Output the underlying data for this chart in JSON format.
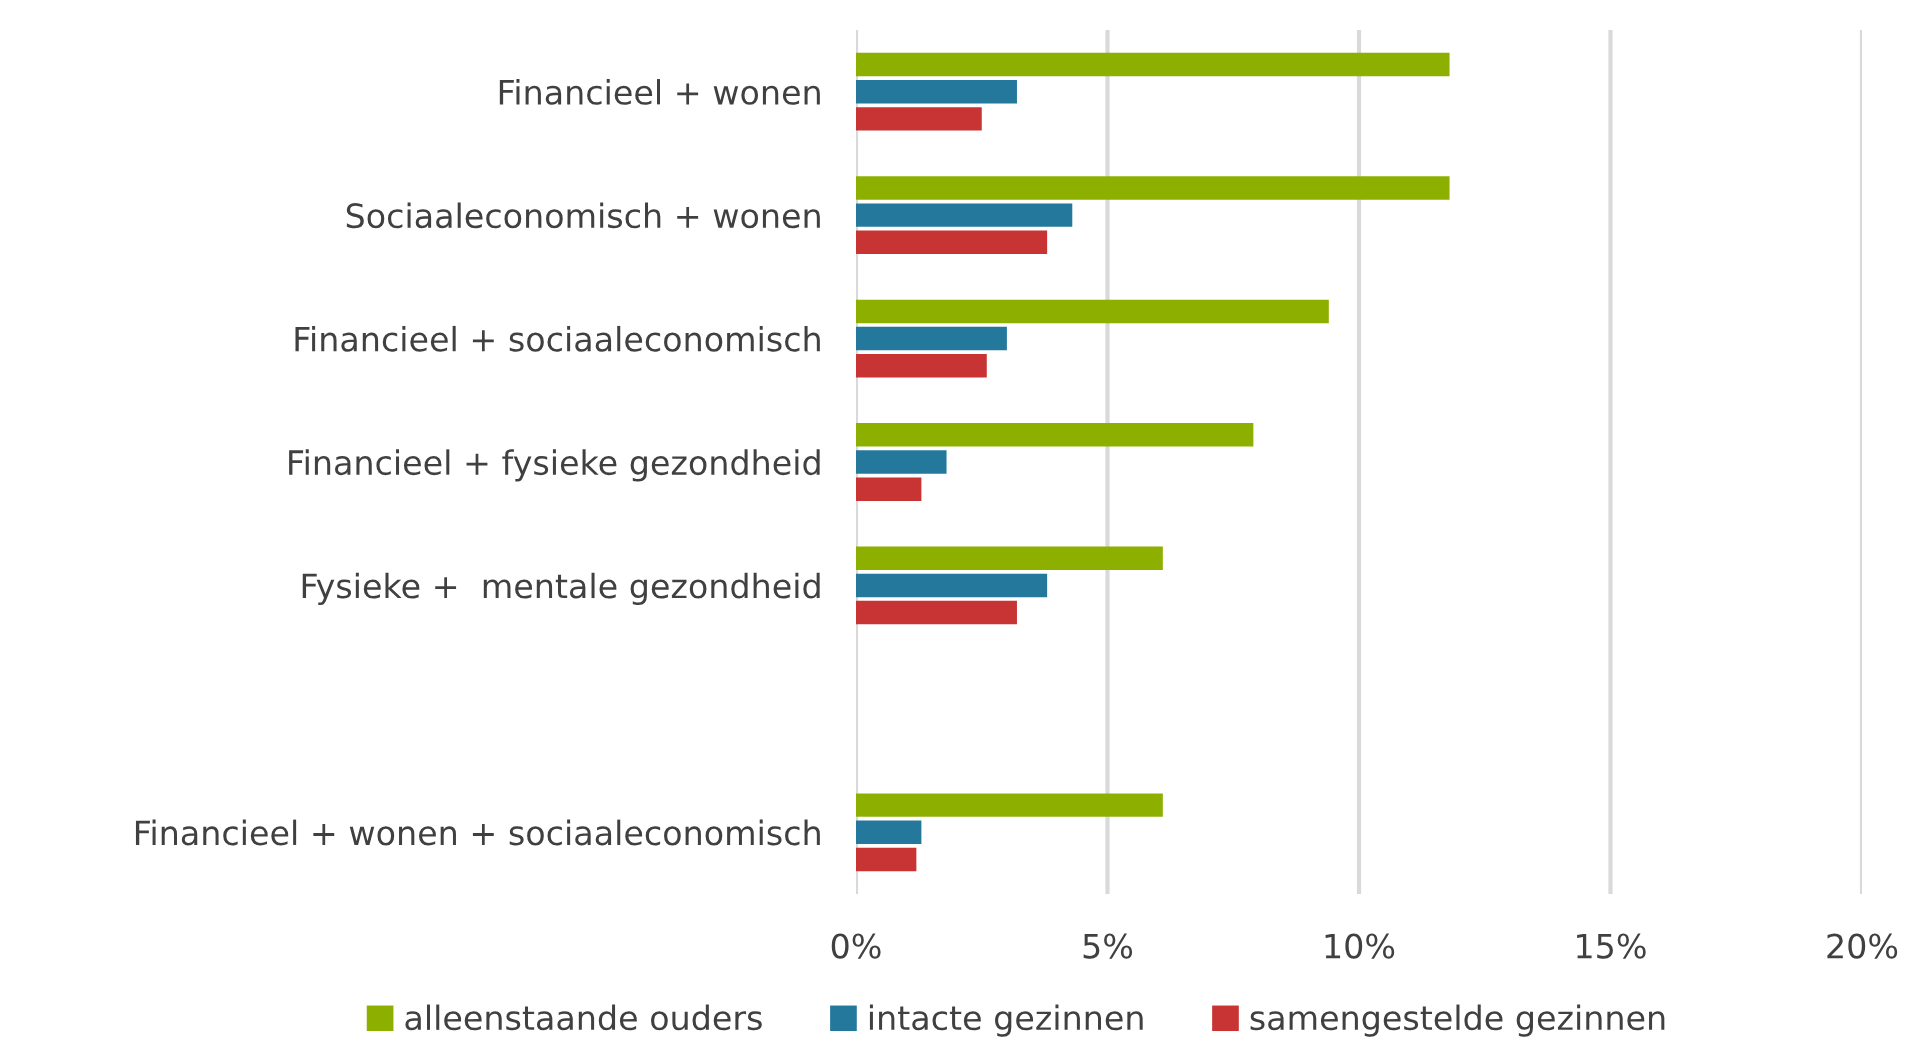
{
  "chart_data": {
    "type": "bar",
    "orientation": "horizontal",
    "categories": [
      "Financieel + wonen",
      "Sociaaleconomisch + wonen",
      "Financieel + sociaaleconomisch",
      "Financieel + fysieke gezondheid",
      "Fysieke +  mentale gezondheid",
      null,
      "Financieel + wonen + sociaaleconomisch"
    ],
    "series": [
      {
        "name": "alleenstaande ouders",
        "color": "#8db000",
        "values": [
          11.8,
          11.8,
          9.4,
          7.9,
          6.1,
          null,
          6.1
        ]
      },
      {
        "name": "intacte gezinnen",
        "color": "#23789c",
        "values": [
          3.2,
          4.3,
          3.0,
          1.8,
          3.8,
          null,
          1.3
        ]
      },
      {
        "name": "samengestelde gezinnen",
        "color": "#c83333",
        "values": [
          2.5,
          3.8,
          2.6,
          1.3,
          3.2,
          null,
          1.2
        ]
      }
    ],
    "xlim": [
      0,
      20
    ],
    "xticks": [
      {
        "value": 0,
        "label": "0%"
      },
      {
        "value": 5,
        "label": "5%"
      },
      {
        "value": 10,
        "label": "10%"
      },
      {
        "value": 15,
        "label": "15%"
      },
      {
        "value": 20,
        "label": "20%"
      }
    ],
    "grid": "x",
    "legend": "bottom"
  }
}
